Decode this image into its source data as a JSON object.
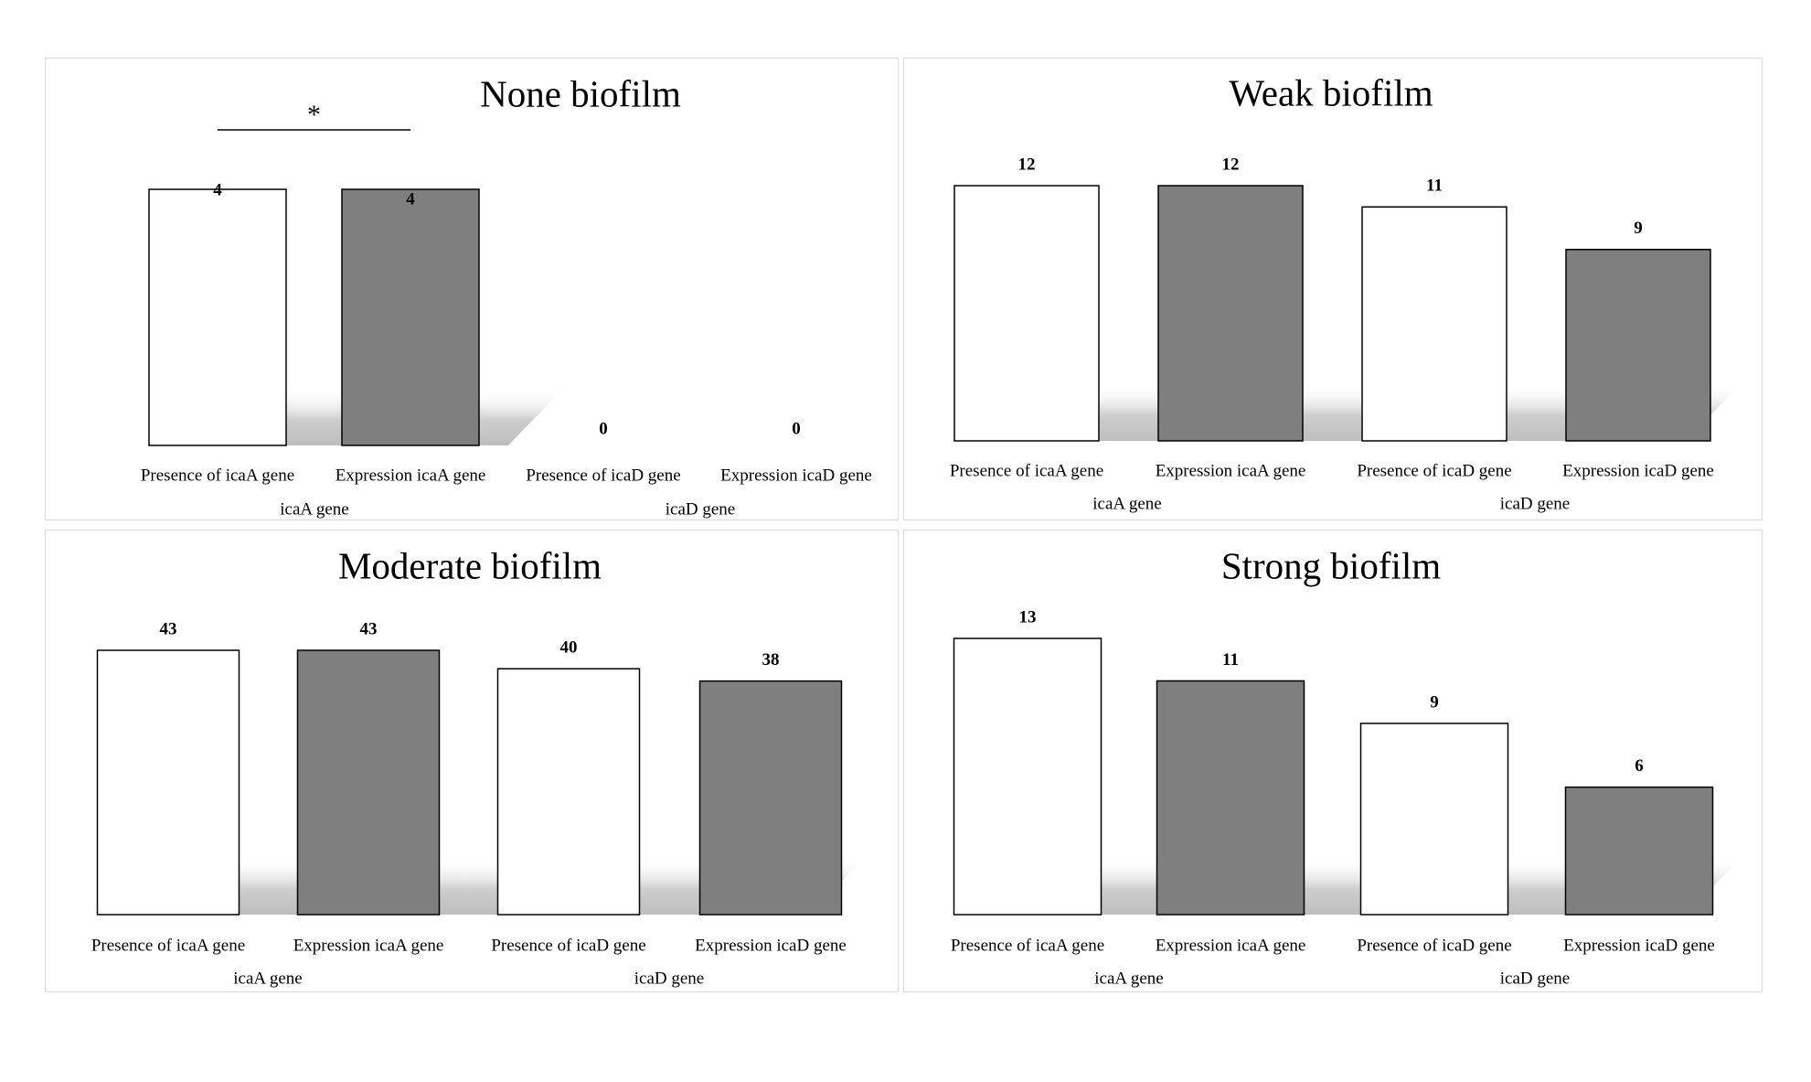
{
  "chart_data": [
    {
      "type": "bar",
      "title": "None biofilm",
      "categories": [
        "Presence of icaA gene",
        "Expression icaA gene",
        "Presence of icaD gene",
        "Expression icaD gene"
      ],
      "groups": [
        {
          "label": "icaA gene",
          "categories": [
            0,
            1
          ]
        },
        {
          "label": "icaD gene",
          "categories": [
            2,
            3
          ]
        }
      ],
      "values": [
        4,
        4,
        0,
        0
      ],
      "bar_colors": [
        "#ffffff",
        "#7f7f7f",
        "#ffffff",
        "#7f7f7f"
      ],
      "annotation": {
        "text": "*",
        "between": [
          0,
          1
        ]
      },
      "shadow": true
    },
    {
      "type": "bar",
      "title": "Weak biofilm",
      "categories": [
        "Presence of icaA gene",
        "Expression icaA gene",
        "Presence of icaD gene",
        "Expression icaD gene"
      ],
      "groups": [
        {
          "label": "icaA gene",
          "categories": [
            0,
            1
          ]
        },
        {
          "label": "icaD gene",
          "categories": [
            2,
            3
          ]
        }
      ],
      "values": [
        12,
        12,
        11,
        9
      ],
      "bar_colors": [
        "#ffffff",
        "#7f7f7f",
        "#ffffff",
        "#7f7f7f"
      ],
      "shadow": true
    },
    {
      "type": "bar",
      "title": "Moderate biofilm",
      "categories": [
        "Presence of icaA gene",
        "Expression icaA gene",
        "Presence of icaD gene",
        "Expression icaD gene"
      ],
      "groups": [
        {
          "label": "icaA gene",
          "categories": [
            0,
            1
          ]
        },
        {
          "label": "icaD gene",
          "categories": [
            2,
            3
          ]
        }
      ],
      "values": [
        43,
        43,
        40,
        38
      ],
      "bar_colors": [
        "#ffffff",
        "#7f7f7f",
        "#ffffff",
        "#7f7f7f"
      ],
      "shadow": true
    },
    {
      "type": "bar",
      "title": "Strong biofilm",
      "categories": [
        "Presence of icaA gene",
        "Expression icaA gene",
        "Presence of icaD gene",
        "Expression icaD gene"
      ],
      "groups": [
        {
          "label": "icaA gene",
          "categories": [
            0,
            1
          ]
        },
        {
          "label": "icaD gene",
          "categories": [
            2,
            3
          ]
        }
      ],
      "values": [
        13,
        11,
        9,
        6
      ],
      "bar_colors": [
        "#ffffff",
        "#7f7f7f",
        "#ffffff",
        "#7f7f7f"
      ],
      "shadow": true
    }
  ]
}
